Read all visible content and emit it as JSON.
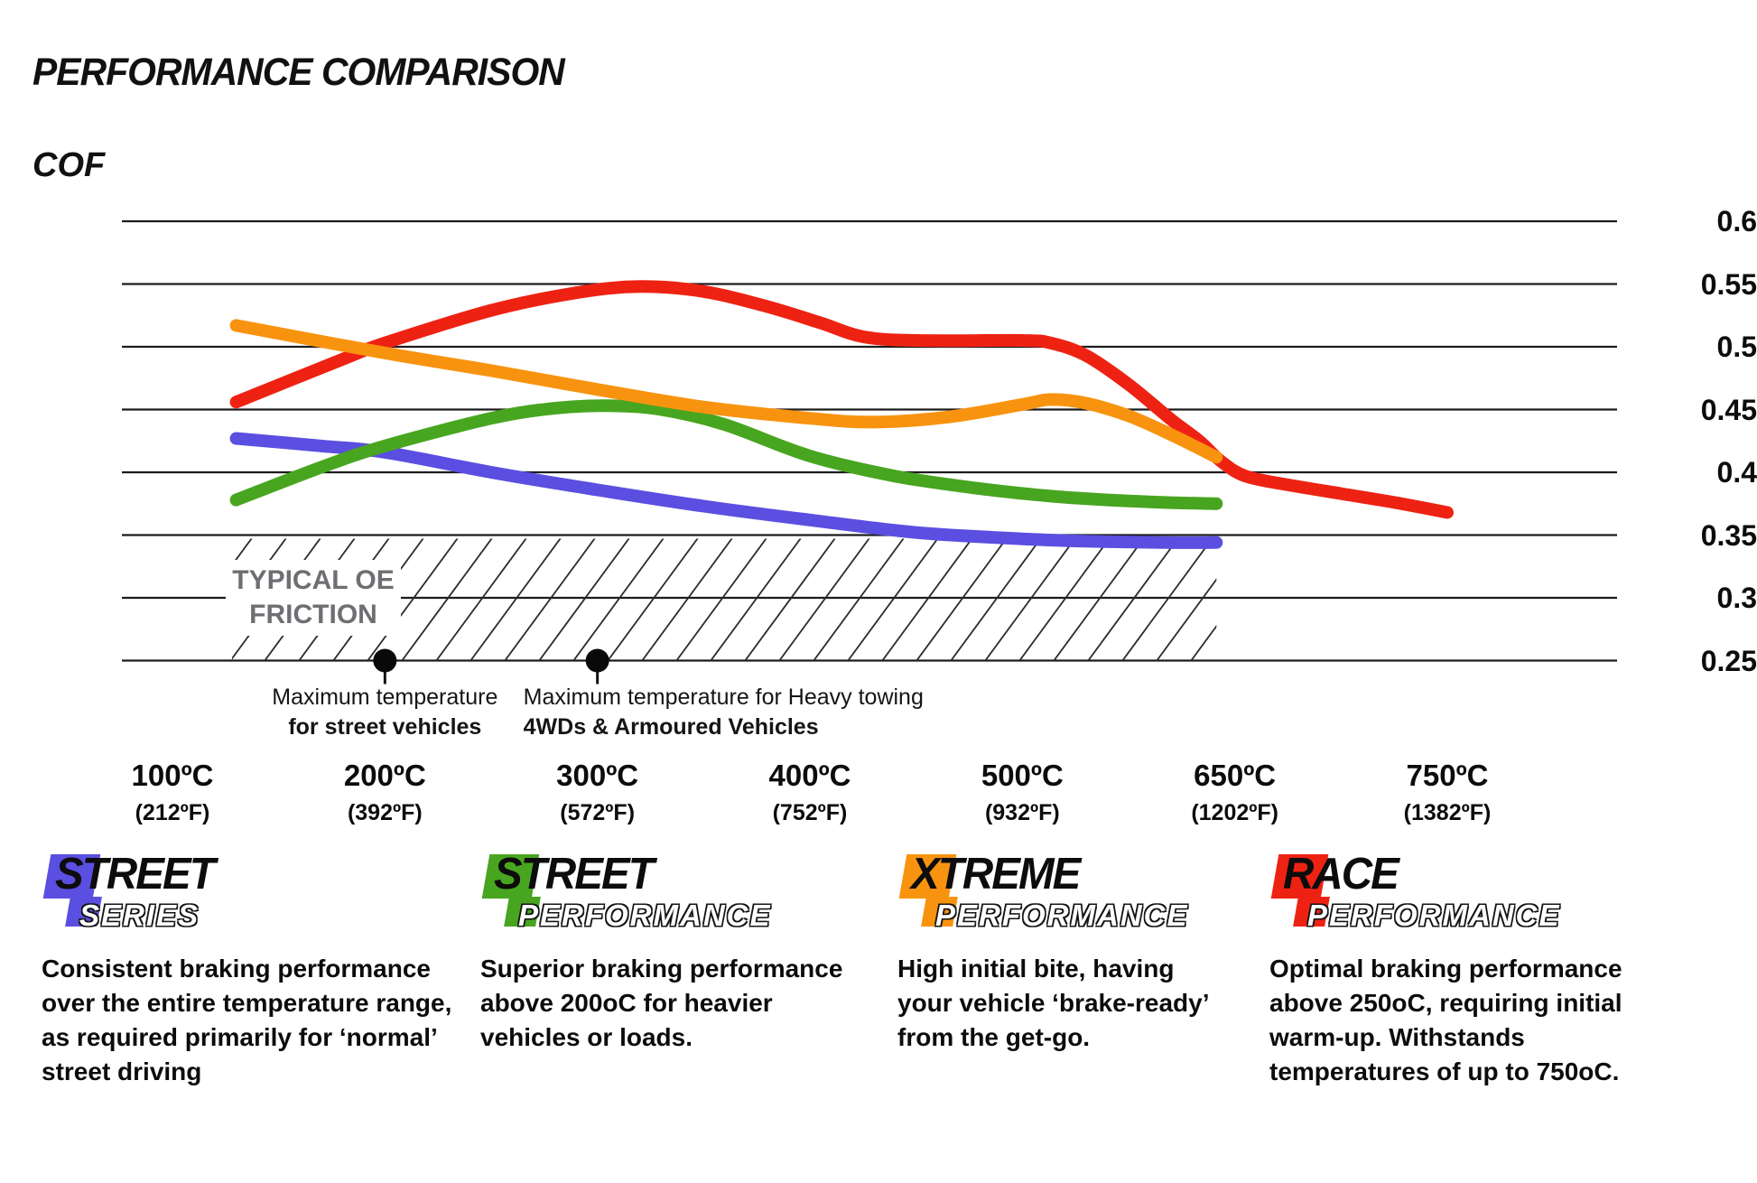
{
  "page": {
    "title": "PERFORMANCE COMPARISON",
    "y_axis_title": "COF"
  },
  "chart_data": {
    "type": "line",
    "title": "PERFORMANCE COMPARISON",
    "ylabel": "COF",
    "grid": "horizontal",
    "grid_color": "#1c1c1c",
    "ylim": [
      0.25,
      0.6
    ],
    "y_ticks": [
      "0.6",
      "0.55",
      "0.5",
      "0.45",
      "0.4",
      "0.35",
      "0.3",
      "0.25"
    ],
    "x_ticks": [
      {
        "t": 100,
        "c": "100ºC",
        "f": "(212ºF)"
      },
      {
        "t": 200,
        "c": "200ºC",
        "f": "(392ºF)"
      },
      {
        "t": 300,
        "c": "300ºC",
        "f": "(572ºF)"
      },
      {
        "t": 400,
        "c": "400ºC",
        "f": "(752ºF)"
      },
      {
        "t": 500,
        "c": "500ºC",
        "f": "(932ºF)"
      },
      {
        "t": 650,
        "c": "650ºC",
        "f": "(1202ºF)"
      },
      {
        "t": 750,
        "c": "750ºC",
        "f": "(1382ºF)"
      }
    ],
    "series": [
      {
        "name": "Street Series",
        "color": "#5a4fe0",
        "points": [
          [
            130,
            0.427
          ],
          [
            170,
            0.421
          ],
          [
            200,
            0.416
          ],
          [
            250,
            0.4
          ],
          [
            300,
            0.386
          ],
          [
            350,
            0.373
          ],
          [
            400,
            0.362
          ],
          [
            450,
            0.352
          ],
          [
            500,
            0.347
          ],
          [
            550,
            0.345
          ],
          [
            600,
            0.344
          ],
          [
            637,
            0.344
          ]
        ]
      },
      {
        "name": "Street Performance",
        "color": "#48a520",
        "points": [
          [
            130,
            0.378
          ],
          [
            170,
            0.404
          ],
          [
            200,
            0.421
          ],
          [
            250,
            0.443
          ],
          [
            280,
            0.451
          ],
          [
            305,
            0.453
          ],
          [
            330,
            0.45
          ],
          [
            360,
            0.438
          ],
          [
            400,
            0.413
          ],
          [
            440,
            0.397
          ],
          [
            480,
            0.387
          ],
          [
            520,
            0.381
          ],
          [
            560,
            0.378
          ],
          [
            600,
            0.376
          ],
          [
            637,
            0.375
          ]
        ]
      },
      {
        "name": "Xtreme Performance",
        "color": "#f8930f",
        "points": [
          [
            130,
            0.517
          ],
          [
            200,
            0.495
          ],
          [
            250,
            0.481
          ],
          [
            300,
            0.466
          ],
          [
            350,
            0.452
          ],
          [
            400,
            0.443
          ],
          [
            430,
            0.44
          ],
          [
            465,
            0.444
          ],
          [
            500,
            0.454
          ],
          [
            520,
            0.458
          ],
          [
            545,
            0.455
          ],
          [
            575,
            0.445
          ],
          [
            605,
            0.43
          ],
          [
            637,
            0.412
          ]
        ]
      },
      {
        "name": "Race Performance",
        "color": "#ee2213",
        "points": [
          [
            130,
            0.456
          ],
          [
            180,
            0.49
          ],
          [
            200,
            0.503
          ],
          [
            250,
            0.529
          ],
          [
            290,
            0.543
          ],
          [
            320,
            0.548
          ],
          [
            350,
            0.544
          ],
          [
            380,
            0.532
          ],
          [
            405,
            0.519
          ],
          [
            425,
            0.508
          ],
          [
            450,
            0.505
          ],
          [
            500,
            0.505
          ],
          [
            520,
            0.503
          ],
          [
            545,
            0.493
          ],
          [
            575,
            0.47
          ],
          [
            605,
            0.442
          ],
          [
            625,
            0.425
          ],
          [
            640,
            0.409
          ],
          [
            655,
            0.397
          ],
          [
            675,
            0.39
          ],
          [
            700,
            0.383
          ],
          [
            725,
            0.376
          ],
          [
            750,
            0.368
          ]
        ]
      }
    ],
    "oe_region": {
      "label_line1": "TYPICAL OE",
      "label_line2": "FRICTION",
      "label_color": "#6d6f72",
      "temp_range": [
        128,
        637
      ],
      "cof_range": [
        0.25,
        0.35
      ]
    },
    "annotations": [
      {
        "at_temp": 200,
        "line1": "Maximum temperature",
        "line2": "for street vehicles"
      },
      {
        "at_temp": 300,
        "line1": "Maximum temperature for Heavy towing",
        "line2": "4WDs & Armoured Vehicles"
      }
    ]
  },
  "products": [
    {
      "name": "street-series",
      "word_top": "STREET",
      "word_bottom": "SERIES",
      "color": "#5a4fe0",
      "description": "Consistent braking performance over the entire temperature range, as required primarily for ‘normal’ street driving"
    },
    {
      "name": "street-performance",
      "word_top": "STREET",
      "word_bottom": "PERFORMANCE",
      "color": "#48a520",
      "description": "Superior braking performance above 200oC for heavier vehicles or loads."
    },
    {
      "name": "xtreme-performance",
      "word_top": "XTREME",
      "word_bottom": "PERFORMANCE",
      "color": "#f8930f",
      "description": "High initial bite, having your vehicle ‘brake-ready’ from the get-go."
    },
    {
      "name": "race-performance",
      "word_top": "RACE",
      "word_bottom": "PERFORMANCE",
      "color": "#ee2213",
      "description": "Optimal braking performance above 250oC, requiring initial warm-up. Withstands temperatures of up to 750oC."
    }
  ]
}
